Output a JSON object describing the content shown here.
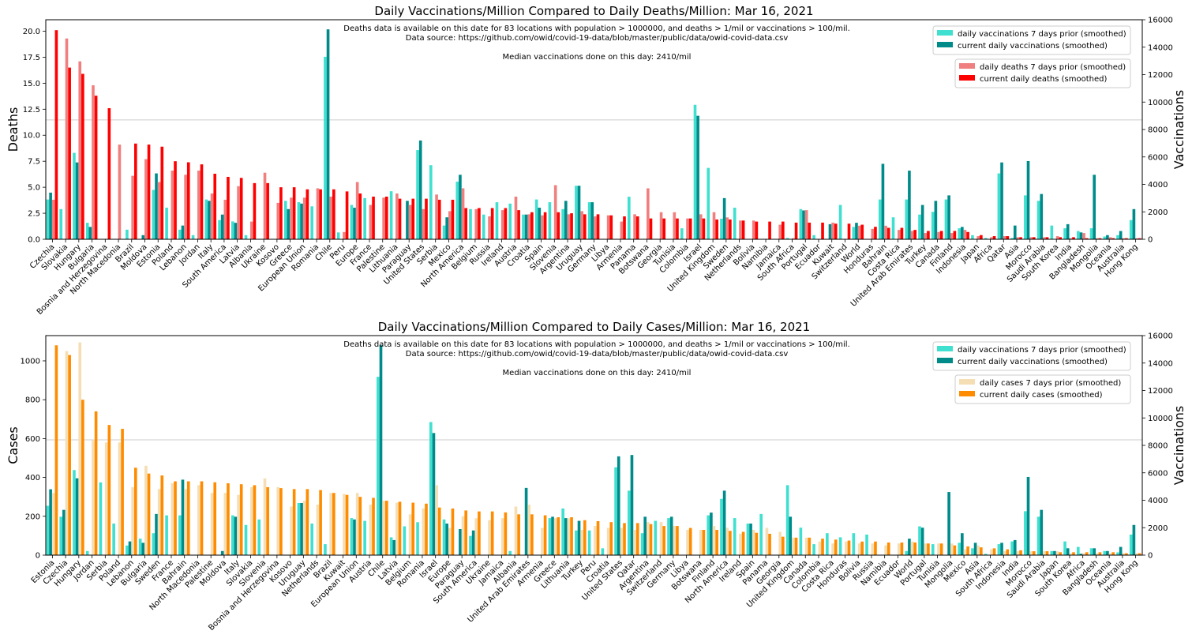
{
  "colors": {
    "vacc_prior": "#40E0D0",
    "vacc_current": "#008B8B",
    "deaths_prior": "#F08080",
    "deaths_current": "#FF0000",
    "cases_prior": "#F5DEB3",
    "cases_current": "#FF8C00",
    "hline": "#cccccc"
  },
  "chart_data": [
    {
      "type": "bar",
      "title": "Daily Vaccinations/Million Compared to Daily Deaths/Million: Mar 16, 2021",
      "ylabel_left": "Deaths",
      "ylabel_right": "Vaccinations",
      "ylim_left": [
        0,
        21.1
      ],
      "yticks_left": [
        "0.0",
        "2.5",
        "5.0",
        "7.5",
        "10.0",
        "12.5",
        "15.0",
        "17.5",
        "20.0"
      ],
      "ylim_right": [
        0,
        16000
      ],
      "yticks_right": [
        "0",
        "2000",
        "4000",
        "6000",
        "8000",
        "10000",
        "12000",
        "14000",
        "16000"
      ],
      "note_lines": [
        "Deaths data is available on this date for 83 locations with population > 1000000, and deaths > 1/mil or vaccinations > 100/mil.",
        "Data source: https://github.com/owid/covid-19-data/blob/master/public/data/owid-covid-data.csv",
        "",
        "Median vaccinations done on this day: 2410/mil"
      ],
      "median_line": 8700,
      "legend_vacc": [
        "daily vaccinations 7 days prior (smoothed)",
        "current daily vaccinations (smoothed)"
      ],
      "legend_metric": [
        "daily deaths 7 days prior (smoothed)",
        "current daily deaths (smoothed)"
      ],
      "categories": [
        "Czechia",
        "Slovakia",
        "Hungary",
        "Bulgaria",
        "Bosnia and Herzegovina",
        "North Macedonia",
        "Brazil",
        "Moldova",
        "Estonia",
        "Poland",
        "Lebanon",
        "Jordan",
        "Italy",
        "South America",
        "Latvia",
        "Albania",
        "Ukraine",
        "Kosovo",
        "Greece",
        "European Union",
        "Romania",
        "Chile",
        "Peru",
        "Europe",
        "France",
        "Palestine",
        "Lithuania",
        "Paraguay",
        "United States",
        "Serbia",
        "Mexico",
        "North America",
        "Belgium",
        "Russia",
        "Ireland",
        "Austria",
        "Croatia",
        "Spain",
        "Slovenia",
        "Argentina",
        "Uruguay",
        "Germany",
        "Libya",
        "Armenia",
        "Panama",
        "Botswana",
        "Georgia",
        "Tunisia",
        "Colombia",
        "Israel",
        "United Kingdom",
        "Sweden",
        "Netherlands",
        "Bolivia",
        "Namibia",
        "Jamaica",
        "South Africa",
        "Portugal",
        "Ecuador",
        "Kuwait",
        "Switzerland",
        "World",
        "Honduras",
        "Bahrain",
        "Costa Rica",
        "United Arab Emirates",
        "Turkey",
        "Canada",
        "Finland",
        "Indonesia",
        "Japan",
        "Africa",
        "Qatar",
        "Asia",
        "Morocco",
        "Saudi Arabia",
        "South Korea",
        "India",
        "Bangladesh",
        "Mongolia",
        "Oceania",
        "Australia",
        "Hong Kong"
      ],
      "metric_prior": [
        3.8,
        19.3,
        17.1,
        14.8,
        0,
        9.1,
        6.1,
        7.7,
        5.5,
        6.6,
        6.2,
        6.6,
        4.4,
        3.8,
        5.1,
        1.7,
        6.4,
        3.5,
        4.0,
        4.0,
        4.9,
        4.1,
        0.7,
        5.5,
        3.3,
        4.0,
        4.4,
        3.3,
        2.9,
        4.3,
        2.7,
        4.9,
        2.9,
        2.2,
        2.8,
        4.1,
        2.4,
        2.3,
        5.2,
        2.4,
        2.7,
        2.2,
        2.3,
        1.7,
        2.4,
        4.9,
        2.6,
        2.6,
        2.0,
        2.4,
        2.6,
        2.1,
        1.8,
        1.8,
        0,
        1.4,
        0.1,
        2.8,
        0,
        1.6,
        0,
        1.3,
        1.0,
        1.3,
        0.9,
        0.8,
        0.6,
        0.7,
        0.6,
        0.9,
        0.3,
        0.2,
        0.3,
        0.2,
        0.2,
        0.2,
        0.3,
        0.1,
        0.6,
        0.1,
        0.2,
        0.1,
        0.1
      ],
      "metric_current": [
        20.1,
        16.5,
        15.9,
        13.8,
        12.6,
        0,
        9.2,
        9.1,
        8.9,
        7.5,
        7.4,
        7.2,
        6.3,
        6.0,
        5.9,
        5.4,
        5.4,
        5.0,
        5.0,
        4.8,
        4.8,
        4.8,
        4.6,
        4.4,
        4.1,
        4.1,
        3.9,
        3.9,
        3.9,
        3.8,
        3.8,
        3.0,
        3.0,
        3.0,
        3.0,
        2.8,
        2.6,
        2.6,
        2.6,
        2.5,
        2.4,
        2.4,
        2.3,
        2.2,
        2.2,
        2.0,
        2.0,
        2.0,
        2.0,
        2.0,
        1.9,
        1.9,
        1.8,
        1.7,
        1.7,
        1.7,
        1.6,
        1.6,
        1.6,
        1.5,
        1.5,
        1.4,
        1.2,
        1.1,
        1.1,
        0.9,
        0.8,
        0.8,
        0.8,
        0.7,
        0.4,
        0.3,
        0.3,
        0.2,
        0.2,
        0.2,
        0.2,
        0.2,
        0.1,
        0.1,
        0.1,
        0.1,
        0.1
      ],
      "vacc_prior": [
        2900,
        2200,
        6300,
        1200,
        0,
        0,
        700,
        0,
        3600,
        2300,
        700,
        300,
        2900,
        1400,
        1300,
        300,
        0,
        0,
        2800,
        2700,
        2400,
        13300,
        500,
        2500,
        3000,
        0,
        3500,
        0,
        6500,
        5400,
        1000,
        4200,
        2200,
        1800,
        2700,
        2600,
        1800,
        2900,
        2700,
        2200,
        3900,
        2700,
        0,
        0,
        3100,
        0,
        0,
        0,
        800,
        9800,
        5200,
        1500,
        2300,
        0,
        0,
        0,
        100,
        2200,
        300,
        0,
        2500,
        900,
        0,
        2900,
        1600,
        2900,
        1800,
        2000,
        2900,
        800,
        300,
        100,
        4800,
        100,
        3200,
        2800,
        1000,
        800,
        600,
        800,
        200,
        300,
        1400
      ],
      "vacc_current": [
        3400,
        0,
        5600,
        900,
        0,
        0,
        0,
        300,
        4800,
        0,
        1000,
        0,
        2800,
        1800,
        1200,
        0,
        0,
        0,
        2200,
        2600,
        0,
        15300,
        0,
        2300,
        0,
        0,
        0,
        2800,
        7200,
        0,
        1600,
        4700,
        0,
        0,
        0,
        0,
        1800,
        2300,
        0,
        2800,
        3900,
        2700,
        0,
        0,
        0,
        0,
        0,
        0,
        0,
        9000,
        0,
        3000,
        0,
        0,
        0,
        0,
        0,
        2100,
        0,
        1100,
        0,
        1200,
        0,
        5500,
        0,
        5000,
        2500,
        2800,
        3200,
        900,
        0,
        0,
        5600,
        1000,
        5700,
        3300,
        0,
        1100,
        500,
        4700,
        300,
        600,
        2200
      ]
    },
    {
      "type": "bar",
      "title": "Daily Vaccinations/Million Compared to Daily Cases/Million: Mar 16, 2021",
      "ylabel_left": "Cases",
      "ylabel_right": "Vaccinations",
      "ylim_left": [
        0,
        1130
      ],
      "yticks_left": [
        "0",
        "200",
        "400",
        "600",
        "800",
        "1000"
      ],
      "ylim_right": [
        0,
        16000
      ],
      "yticks_right": [
        "0",
        "2000",
        "4000",
        "6000",
        "8000",
        "10000",
        "12000",
        "14000",
        "16000"
      ],
      "note_lines": [
        "Deaths data is available on this date for 83 locations with population > 1000000, and deaths > 1/mil or vaccinations > 100/mil.",
        "Data source: https://github.com/owid/covid-19-data/blob/master/public/data/owid-covid-data.csv",
        "",
        "Median vaccinations done on this day: 2410/mil"
      ],
      "median_line": 8400,
      "legend_vacc": [
        "daily vaccinations 7 days prior (smoothed)",
        "current daily vaccinations (smoothed)"
      ],
      "legend_metric": [
        "daily cases 7 days prior (smoothed)",
        "current daily cases (smoothed)"
      ],
      "categories": [
        "Estonia",
        "Czechia",
        "Hungary",
        "Jordan",
        "Serbia",
        "Poland",
        "Lebanon",
        "Bulgaria",
        "Sweden",
        "France",
        "Bahrain",
        "North Macedonia",
        "Palestine",
        "Moldova",
        "Italy",
        "Slovakia",
        "Slovenia",
        "Bosnia and Herzegovina",
        "Kosovo",
        "Uruguay",
        "Netherlands",
        "Brazil",
        "Kuwait",
        "European Union",
        "Austria",
        "Chile",
        "Latvia",
        "Belgium",
        "Romania",
        "Israel",
        "Europe",
        "Paraguay",
        "South America",
        "Ukraine",
        "Jamaica",
        "Albania",
        "United Arab Emirates",
        "Armenia",
        "Greece",
        "Lithuania",
        "Turkey",
        "Peru",
        "Croatia",
        "United States",
        "Qatar",
        "Argentina",
        "Switzerland",
        "Germany",
        "Libya",
        "Botswana",
        "Finland",
        "North America",
        "Ireland",
        "Spain",
        "Panama",
        "Georgia",
        "United Kingdom",
        "Canada",
        "Colombia",
        "Costa Rica",
        "Honduras",
        "Bolivia",
        "Russia",
        "Namibia",
        "Ecuador",
        "World",
        "Portugal",
        "Tunisia",
        "Mongolia",
        "Mexico",
        "Asia",
        "South Africa",
        "Indonesia",
        "India",
        "Morocco",
        "Saudi Arabia",
        "Japan",
        "South Korea",
        "Africa",
        "Bangladesh",
        "Oceania",
        "Australia",
        "Hong Kong"
      ],
      "metric_prior": [
        320,
        1050,
        1095,
        590,
        580,
        580,
        350,
        460,
        340,
        370,
        340,
        360,
        320,
        320,
        310,
        350,
        395,
        350,
        250,
        280,
        260,
        320,
        315,
        320,
        260,
        280,
        270,
        210,
        240,
        360,
        140,
        200,
        190,
        180,
        190,
        250,
        260,
        140,
        190,
        190,
        130,
        150,
        140,
        140,
        130,
        170,
        170,
        150,
        130,
        130,
        150,
        140,
        110,
        130,
        140,
        120,
        90,
        90,
        70,
        60,
        70,
        60,
        60,
        50,
        60,
        70,
        60,
        60,
        60,
        30,
        50,
        30,
        20,
        20,
        20,
        20,
        20,
        10,
        10,
        10,
        10,
        10,
        10
      ],
      "metric_current": [
        1080,
        1030,
        800,
        740,
        670,
        650,
        450,
        420,
        410,
        380,
        380,
        380,
        375,
        370,
        365,
        360,
        350,
        345,
        340,
        340,
        335,
        320,
        310,
        300,
        295,
        280,
        275,
        270,
        265,
        245,
        240,
        230,
        225,
        225,
        220,
        210,
        210,
        205,
        195,
        195,
        180,
        175,
        170,
        165,
        165,
        160,
        150,
        150,
        140,
        130,
        130,
        125,
        120,
        115,
        110,
        95,
        90,
        90,
        85,
        80,
        75,
        70,
        70,
        65,
        65,
        65,
        60,
        60,
        50,
        45,
        40,
        35,
        30,
        25,
        20,
        20,
        15,
        15,
        15,
        15,
        15,
        10,
        10
      ],
      "vacc_prior": [
        3600,
        2800,
        6200,
        300,
        5300,
        2300,
        700,
        1200,
        1600,
        2900,
        2900,
        0,
        0,
        0,
        2900,
        2200,
        2600,
        0,
        0,
        3800,
        2300,
        800,
        0,
        2700,
        2500,
        13000,
        1300,
        2100,
        2400,
        9700,
        2600,
        0,
        1400,
        0,
        0,
        300,
        0,
        0,
        2700,
        3400,
        1800,
        1800,
        500,
        6400,
        4700,
        1600,
        2500,
        2700,
        0,
        0,
        2900,
        4100,
        2700,
        2300,
        3000,
        0,
        5100,
        2000,
        800,
        1600,
        1300,
        1600,
        1500,
        0,
        0,
        300,
        2100,
        800,
        0,
        900,
        500,
        100,
        800,
        1000,
        3200,
        2800,
        300,
        1000,
        600,
        500,
        300,
        200,
        1500
      ],
      "vacc_current": [
        4800,
        3300,
        5600,
        0,
        0,
        0,
        1000,
        900,
        3000,
        0,
        5500,
        0,
        0,
        300,
        2800,
        0,
        0,
        0,
        0,
        3800,
        0,
        0,
        0,
        2600,
        0,
        15300,
        1100,
        0,
        0,
        8900,
        2300,
        1900,
        1800,
        0,
        0,
        0,
        4900,
        0,
        2800,
        2700,
        2500,
        0,
        0,
        7200,
        7300,
        2800,
        0,
        2800,
        0,
        0,
        3100,
        4700,
        0,
        2300,
        0,
        0,
        2800,
        0,
        0,
        0,
        0,
        0,
        0,
        0,
        0,
        1200,
        2000,
        0,
        4600,
        1600,
        900,
        0,
        900,
        1100,
        5700,
        3300,
        300,
        500,
        100,
        500,
        300,
        600,
        2200
      ]
    }
  ]
}
